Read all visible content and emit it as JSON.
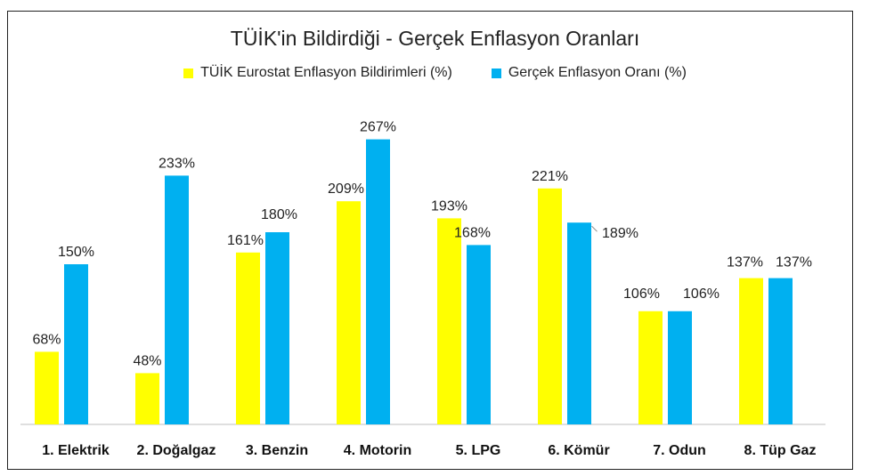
{
  "chart_data": {
    "type": "bar",
    "title": "TÜİK'in Bildirdiği - Gerçek Enflasyon Oranları",
    "categories": [
      "1. Elektrik",
      "2. Doğalgaz",
      "3. Benzin",
      "4. Motorin",
      "5. LPG",
      "6. Kömür",
      "7. Odun",
      "8. Tüp Gaz"
    ],
    "series": [
      {
        "name": "TÜİK Eurostat Enflasyon Bildirimleri (%)",
        "color": "#FFFF00",
        "values": [
          68,
          48,
          161,
          209,
          193,
          221,
          106,
          137
        ],
        "labels": [
          "68%",
          "48%",
          "161%",
          "209%",
          "193%",
          "221%",
          "106%",
          "137%"
        ]
      },
      {
        "name": "Gerçek Enflasyon Oranı (%)",
        "color": "#00B0F0",
        "values": [
          150,
          233,
          180,
          267,
          168,
          189,
          106,
          137
        ],
        "labels": [
          "150%",
          "233%",
          "180%",
          "267%",
          "168%",
          "189%",
          "106%",
          "137%"
        ]
      }
    ],
    "xlabel": "",
    "ylabel": "",
    "ylim": [
      0,
      300
    ],
    "grid": false,
    "legend_position": "top"
  }
}
